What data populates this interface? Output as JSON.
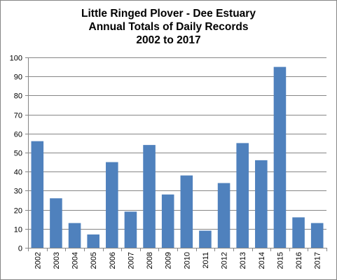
{
  "chart_data": {
    "type": "bar",
    "title_lines": [
      "Little Ringed Plover - Dee Estuary",
      "Annual Totals of Daily Records",
      "2002 to 2017"
    ],
    "categories": [
      "2002",
      "2003",
      "2004",
      "2005",
      "2006",
      "2007",
      "2008",
      "2009",
      "2010",
      "2011",
      "2012",
      "2013",
      "2014",
      "2015",
      "2016",
      "2017"
    ],
    "values": [
      56,
      26,
      13,
      7,
      45,
      19,
      54,
      28,
      38,
      9,
      34,
      55,
      46,
      95,
      16,
      13
    ],
    "xlabel": "",
    "ylabel": "",
    "ylim": [
      0,
      100
    ],
    "yticks": [
      0,
      10,
      20,
      30,
      40,
      50,
      60,
      70,
      80,
      90,
      100
    ],
    "grid": true,
    "legend": "none",
    "bar_color": "#4f81bd",
    "grid_color": "#868686"
  }
}
